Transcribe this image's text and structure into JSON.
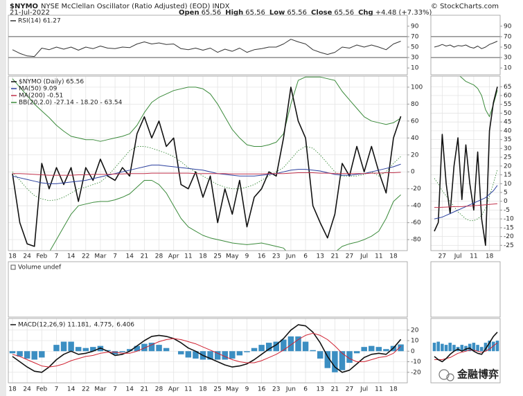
{
  "header": {
    "symbol": "$NYMO",
    "name": "NYSE McClellan Oscillator (Ratio Adjusted) (EOD) INDX",
    "date": "21-Jul-2022",
    "quote": [
      {
        "label": "Open",
        "value": "65.56"
      },
      {
        "label": "High",
        "value": "65.56"
      },
      {
        "label": "Low",
        "value": "65.56"
      },
      {
        "label": "Close",
        "value": "65.56"
      },
      {
        "label": "Chg",
        "value": "+4.48 (+7.33%)"
      }
    ],
    "source": "© StockCharts.com"
  },
  "watermark": "金融博弈",
  "chart_data": [
    {
      "type": "line",
      "title": "RSI(14) 61.27",
      "ylim": [
        -3,
        111
      ],
      "yticks": [
        90,
        70,
        50,
        30,
        10
      ],
      "levels": [
        70,
        30
      ],
      "series": [
        {
          "color": "#333333",
          "values": [
            45,
            38,
            33,
            32,
            48,
            45,
            50,
            46,
            50,
            44,
            50,
            47,
            52,
            48,
            47,
            50,
            49,
            56,
            60,
            56,
            58,
            55,
            56,
            47,
            45,
            48,
            44,
            48,
            40,
            46,
            42,
            48,
            40,
            45,
            47,
            50,
            50,
            56,
            65,
            60,
            56,
            45,
            40,
            36,
            40,
            50,
            48,
            54,
            50,
            54,
            50,
            45,
            56,
            61.27
          ]
        }
      ]
    },
    {
      "type": "line",
      "legend": "upper left",
      "grid": true,
      "ylim": [
        -93,
        113
      ],
      "yticks": [
        100,
        80,
        60,
        40,
        20,
        0,
        -20,
        -40,
        -60,
        -80
      ],
      "categories": [
        "18",
        null,
        "24",
        null,
        "Feb",
        null,
        "7",
        null,
        "14",
        null,
        "22",
        null,
        "Mar",
        null,
        "7",
        null,
        "14",
        null,
        "21",
        null,
        "28",
        null,
        "Apr",
        null,
        "11",
        null,
        "18",
        null,
        "25",
        null,
        "May",
        null,
        "9",
        null,
        "16",
        null,
        "23",
        null,
        "Jun",
        null,
        "6",
        null,
        "13",
        null,
        "21",
        null,
        "27",
        null,
        "Jul",
        null,
        "11",
        null,
        "18",
        null
      ],
      "bands": {
        "name": "BB(20,2.0) -27.14 - 18.20 - 63.54",
        "color": "#3a8a3a",
        "middle_style": "dotted",
        "upper": [
          110,
          100,
          90,
          80,
          72,
          64,
          55,
          48,
          42,
          40,
          38,
          38,
          36,
          38,
          40,
          42,
          45,
          55,
          70,
          82,
          88,
          92,
          96,
          98,
          100,
          100,
          98,
          92,
          80,
          65,
          50,
          40,
          32,
          30,
          30,
          32,
          35,
          45,
          80,
          108,
          112,
          112,
          112,
          110,
          108,
          95,
          85,
          75,
          65,
          60,
          58,
          56,
          58,
          63.54
        ],
        "middle": [
          0,
          -10,
          -20,
          -28,
          -32,
          -34,
          -33,
          -30,
          -25,
          -20,
          -18,
          -15,
          -12,
          -5,
          5,
          15,
          25,
          30,
          30,
          28,
          25,
          22,
          18,
          12,
          5,
          0,
          -5,
          -10,
          -15,
          -18,
          -20,
          -20,
          -18,
          -15,
          -10,
          -5,
          0,
          5,
          15,
          25,
          30,
          28,
          20,
          10,
          0,
          -5,
          -5,
          -5,
          -3,
          0,
          -5,
          0,
          10,
          18.2
        ],
        "lower": [
          -120,
          -120,
          -115,
          -110,
          -105,
          -95,
          -80,
          -65,
          -50,
          -40,
          -38,
          -36,
          -35,
          -35,
          -33,
          -30,
          -26,
          -18,
          -10,
          -10,
          -15,
          -25,
          -40,
          -55,
          -65,
          -70,
          -75,
          -78,
          -80,
          -82,
          -84,
          -85,
          -86,
          -85,
          -84,
          -86,
          -88,
          -90,
          -100,
          -110,
          -115,
          -118,
          -115,
          -105,
          -95,
          -88,
          -85,
          -83,
          -80,
          -76,
          -70,
          -55,
          -35,
          -27.14
        ]
      },
      "series": [
        {
          "name": "$NYMO (Daily) 65.56",
          "color": "#111111",
          "width": 1.6,
          "values": [
            -2,
            -60,
            -85,
            -88,
            10,
            -20,
            5,
            -15,
            5,
            -35,
            5,
            -10,
            15,
            -5,
            -10,
            5,
            -5,
            45,
            65,
            40,
            60,
            30,
            40,
            -15,
            -20,
            0,
            -30,
            -5,
            -60,
            -20,
            -50,
            -10,
            -65,
            -30,
            -20,
            0,
            -5,
            40,
            100,
            60,
            40,
            -40,
            -60,
            -78,
            -50,
            10,
            -5,
            30,
            0,
            30,
            0,
            -25,
            40,
            65.56
          ]
        },
        {
          "name": "MA(50) 9.09",
          "color": "#2a3f9e",
          "width": 1,
          "values": [
            -5,
            -7,
            -9,
            -11,
            -13,
            -14,
            -14,
            -13,
            -12,
            -11,
            -10,
            -8,
            -6,
            -4,
            -2,
            0,
            2,
            4,
            6,
            8,
            8,
            7,
            6,
            5,
            4,
            3,
            2,
            0,
            -2,
            -3,
            -4,
            -5,
            -5,
            -5,
            -4,
            -3,
            -2,
            0,
            2,
            3,
            3,
            2,
            1,
            -1,
            -3,
            -4,
            -4,
            -3,
            -2,
            0,
            2,
            4,
            6,
            9.09
          ]
        },
        {
          "name": "MA(200) -0.51",
          "color": "#c0304a",
          "width": 1,
          "values": [
            -2,
            -2,
            -2.5,
            -3,
            -3.5,
            -4,
            -4,
            -4,
            -4,
            -3.5,
            -3.5,
            -3,
            -3,
            -3,
            -2.5,
            -2.5,
            -2,
            -2,
            -2,
            -1.5,
            -1.5,
            -1.5,
            -1.5,
            -1.5,
            -1.5,
            -2,
            -2,
            -2,
            -2,
            -2,
            -2.5,
            -2.5,
            -2.5,
            -2.5,
            -2.5,
            -2,
            -2,
            -2,
            -1.5,
            -1,
            -1,
            -1,
            -1.5,
            -1.5,
            -2,
            -2,
            -2,
            -2,
            -2,
            -1.5,
            -1.5,
            -1,
            -1,
            -0.51
          ]
        }
      ]
    },
    {
      "type": "bar",
      "title": "Volume undef"
    },
    {
      "type": "line",
      "legend": "inline",
      "grid": true,
      "ylim": [
        -30,
        31
      ],
      "yticks": [
        20,
        10,
        0,
        -10,
        -20
      ],
      "categories": [
        "18",
        null,
        "24",
        null,
        "Feb",
        null,
        "7",
        null,
        "14",
        null,
        "22",
        null,
        "Mar",
        null,
        "7",
        null,
        "14",
        null,
        "21",
        null,
        "28",
        null,
        "Apr",
        null,
        "11",
        null,
        "18",
        null,
        "25",
        null,
        "May",
        null,
        "9",
        null,
        "16",
        null,
        "23",
        null,
        "Jun",
        null,
        "6",
        null,
        "13",
        null,
        "21",
        null,
        "27",
        null,
        "Jul",
        null,
        "11",
        null,
        "18",
        null
      ],
      "series": [
        {
          "name": "MACD(12,26,9) 11.181,",
          "color": "#111111",
          "width": 1.6,
          "values": [
            -5,
            -10,
            -15,
            -19,
            -20,
            -15,
            -8,
            -3,
            0,
            -3,
            -2,
            0,
            3,
            0,
            -4,
            -3,
            0,
            5,
            10,
            14,
            15,
            14,
            12,
            8,
            3,
            0,
            -4,
            -7,
            -10,
            -13,
            -15,
            -14,
            -12,
            -8,
            -3,
            2,
            6,
            12,
            20,
            25,
            24,
            18,
            8,
            -5,
            -15,
            -20,
            -18,
            -12,
            -6,
            -3,
            -2,
            -3,
            3,
            11.181
          ]
        },
        {
          "name": "4.775,",
          "color": "#d02030",
          "width": 1,
          "values": [
            -3,
            -5,
            -8,
            -11,
            -14,
            -15,
            -14,
            -12,
            -9,
            -7,
            -5,
            -4,
            -2,
            -1,
            -1,
            -2,
            -2,
            0,
            3,
            6,
            9,
            11,
            12,
            11,
            9,
            7,
            4,
            1,
            -2,
            -5,
            -8,
            -10,
            -11,
            -11,
            -9,
            -6,
            -3,
            1,
            6,
            11,
            15,
            17,
            15,
            11,
            5,
            -2,
            -7,
            -10,
            -10,
            -8,
            -6,
            -5,
            -2,
            4.775
          ]
        },
        {
          "name": "6.406",
          "color": "#3b8ec2",
          "kind": "bar",
          "values": [
            -2,
            -5,
            -7,
            -8,
            -6,
            0,
            6,
            9,
            9,
            4,
            3,
            4,
            5,
            1,
            -3,
            -1,
            2,
            5,
            7,
            8,
            6,
            3,
            0,
            -3,
            -6,
            -7,
            -8,
            -8,
            -8,
            -8,
            -7,
            -4,
            -1,
            3,
            6,
            8,
            9,
            11,
            14,
            14,
            9,
            1,
            -7,
            -16,
            -20,
            -18,
            -11,
            -2,
            4,
            5,
            4,
            2,
            5,
            6.406
          ]
        }
      ]
    },
    {
      "type": "line",
      "ylim": [
        -3,
        111
      ],
      "yticks": [
        90,
        70,
        50,
        30,
        10
      ],
      "levels": [
        70,
        30
      ],
      "series": [
        {
          "color": "#333333",
          "values": [
            50,
            52,
            55,
            52,
            54,
            50,
            53,
            52,
            54,
            50,
            48,
            52,
            47,
            50,
            55,
            58,
            61.27
          ]
        }
      ]
    },
    {
      "type": "line",
      "grid": true,
      "ylim": [
        -28,
        71
      ],
      "yticks": [
        65,
        60,
        55,
        50,
        45,
        40,
        35,
        30,
        25,
        20,
        15,
        10,
        5,
        0,
        -5,
        -10,
        -15,
        -20,
        -25
      ],
      "categories": [
        null,
        null,
        "27",
        null,
        null,
        null,
        "Jul",
        null,
        null,
        null,
        "11",
        null,
        null,
        null,
        "18",
        null,
        null
      ],
      "bands": {
        "color": "#3a8a3a",
        "middle_style": "dotted",
        "upper": [
          75,
          75,
          75,
          75,
          75,
          75,
          72,
          70,
          68,
          67,
          66,
          64,
          60,
          52,
          48,
          55,
          63
        ],
        "middle": [
          13,
          10,
          6,
          3,
          0,
          -3,
          -6,
          -8,
          -10,
          -11,
          -11,
          -10,
          -8,
          -4,
          3,
          10,
          18
        ]
      },
      "series": [
        {
          "color": "#111111",
          "width": 1.6,
          "values": [
            -17,
            -12,
            38,
            10,
            -7,
            20,
            36,
            1,
            32,
            10,
            -5,
            28,
            -10,
            -25,
            40,
            56,
            65
          ]
        },
        {
          "color": "#2a3f9e",
          "width": 1,
          "values": [
            -10,
            -9.5,
            -9,
            -8,
            -7,
            -6,
            -5,
            -4,
            -3,
            -2,
            -1,
            0,
            1,
            2,
            4,
            6,
            9
          ]
        },
        {
          "color": "#c0304a",
          "width": 1,
          "values": [
            -3.5,
            -3.5,
            -3.4,
            -3.3,
            -3.2,
            -3,
            -3,
            -3,
            -2.8,
            -2.7,
            -2.5,
            -2.4,
            -2.2,
            -2,
            -1.8,
            -1.6,
            -1.4
          ]
        }
      ]
    },
    {
      "type": "line",
      "ylim": [
        -30,
        31
      ],
      "series": [
        {
          "color": "#3b8ec2",
          "kind": "bar",
          "values": [
            8,
            9,
            7,
            6,
            8,
            6,
            4,
            6,
            5,
            7,
            8,
            6,
            4,
            8,
            10,
            9,
            10
          ]
        },
        {
          "color": "#d02030",
          "width": 1,
          "values": [
            -8,
            -8,
            -8,
            -7,
            -6,
            -4,
            -2,
            -1,
            0,
            1,
            1,
            0,
            -1,
            0,
            2,
            5,
            8
          ]
        },
        {
          "color": "#111111",
          "width": 1.6,
          "values": [
            -5,
            -8,
            -10,
            -7,
            -3,
            0,
            2,
            0,
            2,
            3,
            0,
            -2,
            -3,
            2,
            8,
            14,
            18
          ]
        }
      ]
    }
  ]
}
